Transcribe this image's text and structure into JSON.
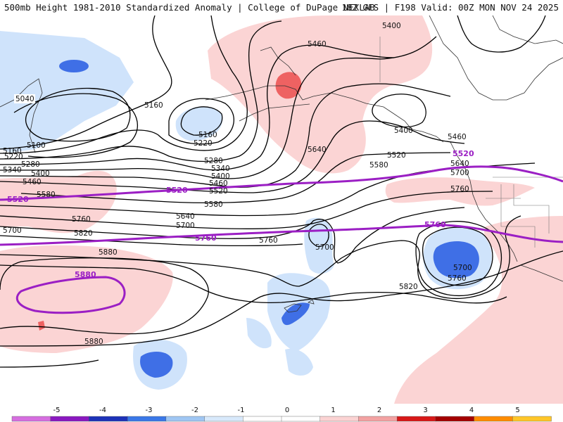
{
  "header": {
    "title_left": "500mb Height 1981-2010 Standardized Anomaly | College of DuPage NEXLAB",
    "title_right": "18Z GFS | F198 Valid: 00Z MON NOV 24 2025"
  },
  "contour_labels": {
    "c5040": "5040",
    "c5100": "5100",
    "c5160a": "5160",
    "c5160b": "5160",
    "c5160c": "5160",
    "c5220a": "5220",
    "c5220b": "5220",
    "c5280a": "5280",
    "c5280b": "5280",
    "c5340a": "5340",
    "c5340b": "5340",
    "c5400a": "5400",
    "c5400b": "5400",
    "c5400c": "5400",
    "c5400d": "5400",
    "c5460a": "5460",
    "c5460b": "5460",
    "c5460c": "5460",
    "c5460d": "5460",
    "c5520a": "5520",
    "c5520b": "5520",
    "c5580a": "5580",
    "c5580b": "5580",
    "c5580c": "5580",
    "c5640a": "5640",
    "c5640b": "5640",
    "c5640c": "5640",
    "c5700a": "5700",
    "c5700b": "5700",
    "c5700c": "5700",
    "c5700d": "5700",
    "c5700e": "5700",
    "c5760a": "5760",
    "c5760b": "5760",
    "c5760c": "5760",
    "c5760d": "5760",
    "c5820a": "5820",
    "c5820b": "5820",
    "c5880a": "5880",
    "c5880b": "5880"
  },
  "normal_labels": {
    "n5520a": "5520",
    "n5520b": "5520",
    "n5520c": "5520",
    "n5760a": "5760",
    "n5760b": "5760",
    "n5880": "5880"
  },
  "colorbar": {
    "ticks": [
      "-5",
      "-4",
      "-3",
      "-2",
      "-1",
      "0",
      "1",
      "2",
      "3",
      "4",
      "5"
    ],
    "colors": [
      "#d66ee0",
      "#8a18c0",
      "#1d32b8",
      "#3a78e8",
      "#9fc6f3",
      "#d8e9fb",
      "#ffffff",
      "#ffffff",
      "#fbd3d3",
      "#f3a2a2",
      "#d81818",
      "#a40000",
      "#ff8c00",
      "#ffc628"
    ]
  }
}
